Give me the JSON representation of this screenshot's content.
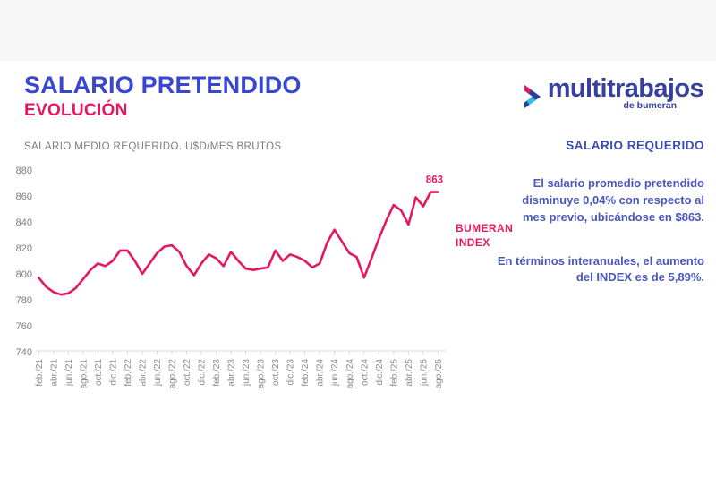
{
  "header": {
    "title": "SALARIO PRETENDIDO",
    "subtitle": "EVOLUCIÓN",
    "chart_caption": "SALARIO MEDIO REQUERIDO. U$D/MES BRUTOS"
  },
  "logo": {
    "brand": "multitrabajos",
    "sub_brand": "de bumeran"
  },
  "series_label": {
    "line1": "BUMERAN",
    "line2": "INDEX"
  },
  "side_panel": {
    "heading": "SALARIO REQUERIDO",
    "paragraph1": "El salario promedio pretendido disminuye 0,04% con respecto al mes previo, ubicándose en $863.",
    "paragraph2": "En términos interanuales, el aumento del INDEX es de 5,89%."
  },
  "colors": {
    "accent_pink": "#e5185f",
    "title_blue": "#3747d0",
    "panel_blue": "#4a57bb",
    "logo_indigo": "#383f9c",
    "chevron_blue": "#2c3f9e",
    "chevron_cyan": "#27c5e4",
    "axis_text_gray": "#7d7d7d",
    "axis_line_gray": "#d9d9d9"
  },
  "chart_data": {
    "type": "line",
    "title": "SALARIO MEDIO REQUERIDO. U$D/MES BRUTOS",
    "x": [
      "feb./21",
      "mar./21",
      "abr./21",
      "may./21",
      "jun./21",
      "jul./21",
      "ago./21",
      "sep./21",
      "oct./21",
      "nov./21",
      "dic./21",
      "ene./22",
      "feb./22",
      "mar./22",
      "abr./22",
      "may./22",
      "jun./22",
      "jul./22",
      "ago./22",
      "sep./22",
      "oct./22",
      "nov./22",
      "dic./22",
      "ene./23",
      "feb./23",
      "mar./23",
      "abr./23",
      "may./23",
      "jun./23",
      "jul./23",
      "ago./23",
      "sep./23",
      "oct./23",
      "nov./23",
      "dic./23",
      "ene./24",
      "feb./24",
      "mar./24",
      "abr./24",
      "may./24",
      "jun./24",
      "jul./24",
      "ago./24",
      "sep./24",
      "oct./24",
      "nov./24",
      "dic./24",
      "ene./25",
      "feb./25",
      "mar./25",
      "abr./25",
      "may./25",
      "jun./25",
      "jul./25",
      "ago./25"
    ],
    "values": [
      797,
      790,
      786,
      784,
      785,
      789,
      796,
      803,
      808,
      806,
      810,
      818,
      818,
      810,
      800,
      808,
      816,
      821,
      822,
      817,
      806,
      799,
      808,
      815,
      812,
      806,
      817,
      810,
      804,
      803,
      804,
      805,
      818,
      810,
      815,
      813,
      810,
      805,
      808,
      824,
      834,
      825,
      816,
      813,
      797,
      812,
      827,
      841,
      853,
      849,
      838,
      859,
      852,
      863,
      863
    ],
    "x_tick_labels": [
      "feb./21",
      "abr./21",
      "jun./21",
      "ago./21",
      "oct./21",
      "dic./21",
      "feb./22",
      "abr./22",
      "jun./22",
      "ago./22",
      "oct./22",
      "dic./22",
      "feb./23",
      "abr./23",
      "jun./23",
      "ago./23",
      "oct./23",
      "dic./23",
      "feb./24",
      "abr./24",
      "jun./24",
      "ago./24",
      "oct./24",
      "dic./24",
      "feb./25",
      "abr./25",
      "jun./25",
      "ago./25"
    ],
    "y_ticks": [
      740,
      760,
      780,
      800,
      820,
      840,
      860,
      880
    ],
    "ylim": [
      740,
      880
    ],
    "grid": false,
    "legend_position": "none",
    "line_color": "#e5185f",
    "end_label": "863"
  }
}
